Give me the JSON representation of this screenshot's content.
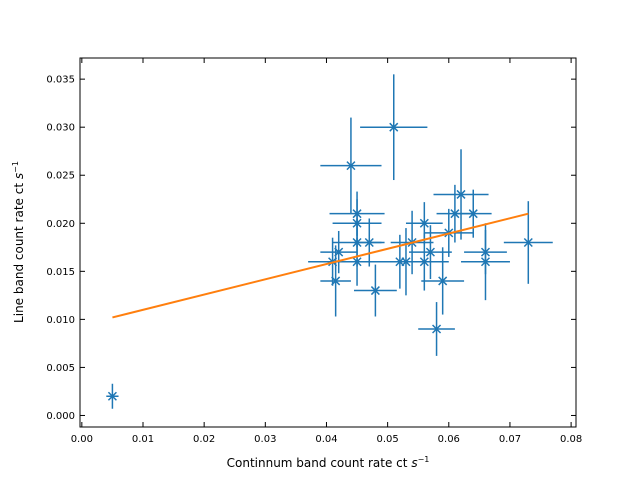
{
  "chart_data": {
    "type": "scatter",
    "title": "",
    "xlabel": "Continnum band count rate ct",
    "xlabel_var": "s",
    "xlabel_exp": "−1",
    "ylabel": "Line band count rate ct",
    "ylabel_var": "s",
    "ylabel_exp": "−1",
    "xlim": [
      -0.0003,
      0.0808
    ],
    "ylim": [
      -0.0012,
      0.0372
    ],
    "xticks": [
      0.0,
      0.01,
      0.02,
      0.03,
      0.04,
      0.05,
      0.06,
      0.07,
      0.08
    ],
    "xtick_labels": [
      "0.00",
      "0.01",
      "0.02",
      "0.03",
      "0.04",
      "0.05",
      "0.06",
      "0.07",
      "0.08"
    ],
    "yticks": [
      0.0,
      0.005,
      0.01,
      0.015,
      0.02,
      0.025,
      0.03,
      0.035
    ],
    "ytick_labels": [
      "0.000",
      "0.005",
      "0.010",
      "0.015",
      "0.020",
      "0.025",
      "0.030",
      "0.035"
    ],
    "grid": false,
    "series": [
      {
        "type": "errorbar",
        "color": "#1f77b4",
        "marker": "x",
        "points": [
          {
            "x": 0.005,
            "y": 0.002,
            "xerr": 0.001,
            "yerr": 0.0013
          },
          {
            "x": 0.0415,
            "y": 0.014,
            "xerr": 0.0025,
            "yerr": 0.0037
          },
          {
            "x": 0.041,
            "y": 0.016,
            "xerr": 0.004,
            "yerr": 0.0025
          },
          {
            "x": 0.042,
            "y": 0.017,
            "xerr": 0.003,
            "yerr": 0.0022
          },
          {
            "x": 0.044,
            "y": 0.026,
            "xerr": 0.005,
            "yerr": 0.005
          },
          {
            "x": 0.045,
            "y": 0.021,
            "xerr": 0.0045,
            "yerr": 0.0023
          },
          {
            "x": 0.045,
            "y": 0.02,
            "xerr": 0.004,
            "yerr": 0.0025
          },
          {
            "x": 0.045,
            "y": 0.018,
            "xerr": 0.004,
            "yerr": 0.0025
          },
          {
            "x": 0.045,
            "y": 0.016,
            "xerr": 0.004,
            "yerr": 0.0025
          },
          {
            "x": 0.047,
            "y": 0.018,
            "xerr": 0.0025,
            "yerr": 0.0025
          },
          {
            "x": 0.048,
            "y": 0.013,
            "xerr": 0.0035,
            "yerr": 0.0027
          },
          {
            "x": 0.051,
            "y": 0.03,
            "xerr": 0.0055,
            "yerr": 0.0055
          },
          {
            "x": 0.052,
            "y": 0.016,
            "xerr": 0.004,
            "yerr": 0.0028
          },
          {
            "x": 0.053,
            "y": 0.016,
            "xerr": 0.0035,
            "yerr": 0.0035
          },
          {
            "x": 0.054,
            "y": 0.018,
            "xerr": 0.0035,
            "yerr": 0.0033
          },
          {
            "x": 0.056,
            "y": 0.02,
            "xerr": 0.003,
            "yerr": 0.0022
          },
          {
            "x": 0.056,
            "y": 0.016,
            "xerr": 0.004,
            "yerr": 0.003
          },
          {
            "x": 0.057,
            "y": 0.017,
            "xerr": 0.0035,
            "yerr": 0.0028
          },
          {
            "x": 0.058,
            "y": 0.009,
            "xerr": 0.003,
            "yerr": 0.0028
          },
          {
            "x": 0.059,
            "y": 0.014,
            "xerr": 0.0035,
            "yerr": 0.0035
          },
          {
            "x": 0.06,
            "y": 0.019,
            "xerr": 0.004,
            "yerr": 0.0025
          },
          {
            "x": 0.061,
            "y": 0.021,
            "xerr": 0.003,
            "yerr": 0.003
          },
          {
            "x": 0.062,
            "y": 0.023,
            "xerr": 0.0045,
            "yerr": 0.0047
          },
          {
            "x": 0.064,
            "y": 0.021,
            "xerr": 0.003,
            "yerr": 0.0025
          },
          {
            "x": 0.066,
            "y": 0.017,
            "xerr": 0.0035,
            "yerr": 0.0023
          },
          {
            "x": 0.066,
            "y": 0.016,
            "xerr": 0.004,
            "yerr": 0.004
          },
          {
            "x": 0.073,
            "y": 0.018,
            "xerr": 0.004,
            "yerr": 0.0043
          }
        ]
      },
      {
        "type": "line",
        "color": "#ff7f0e",
        "x": [
          0.005,
          0.073
        ],
        "y": [
          0.0102,
          0.021
        ]
      }
    ]
  }
}
